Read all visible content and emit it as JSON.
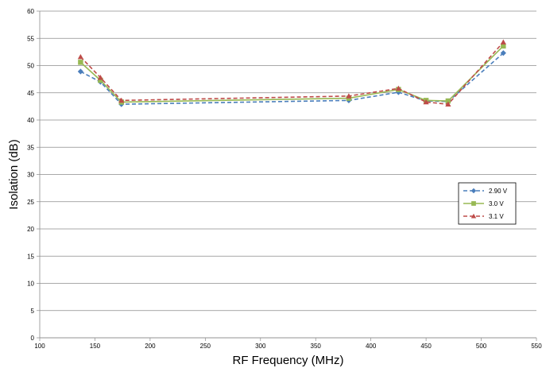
{
  "chart_data": {
    "type": "line",
    "title": "",
    "xlabel": "RF Frequency (MHz)",
    "ylabel": "Isolation (dB)",
    "xlim": [
      100,
      550
    ],
    "ylim": [
      0,
      60
    ],
    "xticks": [
      100,
      150,
      200,
      250,
      300,
      350,
      400,
      450,
      500,
      550
    ],
    "yticks": [
      0,
      5,
      10,
      15,
      20,
      25,
      30,
      35,
      40,
      45,
      50,
      55,
      60
    ],
    "grid": "horizontal",
    "legend_position": "right",
    "series": [
      {
        "name": "2.90 V",
        "color": "#4a7ebb",
        "marker": "diamond",
        "line_style": "dashed",
        "x": [
          137,
          155,
          174,
          380,
          425,
          450,
          470,
          520
        ],
        "y": [
          48.9,
          47.0,
          42.9,
          43.6,
          45.1,
          43.5,
          43.4,
          52.3
        ]
      },
      {
        "name": "3.0 V",
        "color": "#98b954",
        "marker": "square",
        "line_style": "solid",
        "x": [
          137,
          155,
          174,
          380,
          425,
          450,
          470,
          520
        ],
        "y": [
          50.6,
          47.3,
          43.3,
          44.0,
          45.6,
          43.6,
          43.5,
          53.6
        ]
      },
      {
        "name": "3.1 V",
        "color": "#be4b48",
        "marker": "triangle",
        "line_style": "dashed",
        "x": [
          137,
          155,
          174,
          380,
          425,
          450,
          470,
          520
        ],
        "y": [
          51.6,
          47.8,
          43.6,
          44.4,
          45.8,
          43.3,
          42.9,
          54.3
        ]
      }
    ]
  }
}
